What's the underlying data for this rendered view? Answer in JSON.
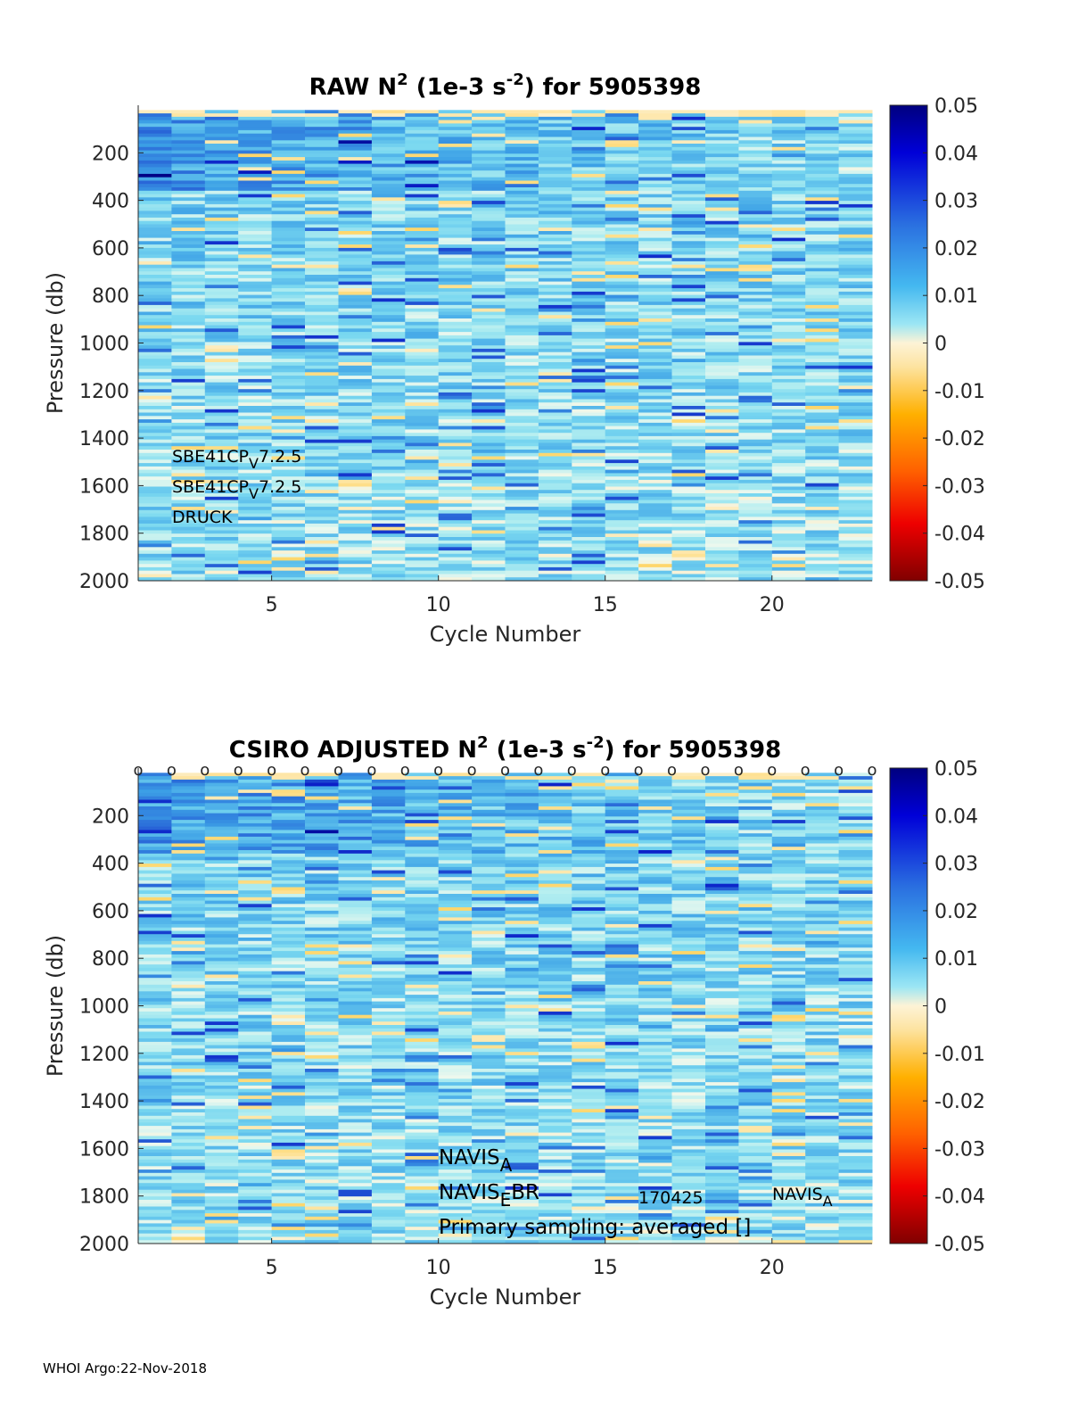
{
  "footer": "WHOI Argo:22-Nov-2018",
  "colorbar": {
    "ticks": [
      "0.05",
      "0.04",
      "0.03",
      "0.02",
      "0.01",
      "0",
      "-0.01",
      "-0.02",
      "-0.03",
      "-0.04",
      "-0.05"
    ],
    "range": [
      -0.05,
      0.05
    ]
  },
  "chart_data": [
    {
      "type": "heatmap",
      "title_main": "RAW N",
      "title_sup": "2",
      "title_mid": " (1e-3 s",
      "title_sup2": "-2",
      "title_end": ") for 5905398",
      "xlabel": "Cycle Number",
      "ylabel": "Pressure (db)",
      "xlim": [
        1,
        23
      ],
      "ylim": [
        0,
        2000
      ],
      "xticks": [
        "5",
        "10",
        "15",
        "20"
      ],
      "xtick_values": [
        5,
        10,
        15,
        20
      ],
      "yticks": [
        "200",
        "400",
        "600",
        "800",
        "1000",
        "1200",
        "1400",
        "1600",
        "1800",
        "2000"
      ],
      "ytick_values": [
        200,
        400,
        600,
        800,
        1000,
        1200,
        1400,
        1600,
        1800,
        2000
      ],
      "cycles": [
        1,
        2,
        3,
        4,
        5,
        6,
        7,
        8,
        9,
        10,
        11,
        12,
        13,
        14,
        15,
        16,
        17,
        18,
        19,
        20,
        21,
        22
      ],
      "annotations": [
        {
          "base": "SBE41CP",
          "sub": "V",
          "rest": "7.2.5"
        },
        {
          "base": "SBE41CP",
          "sub": "V",
          "rest": "7.2.5"
        },
        {
          "base": "DRUCK",
          "sub": "",
          "rest": ""
        }
      ],
      "cycle_markers": false
    },
    {
      "type": "heatmap",
      "title_main": "CSIRO  ADJUSTED N",
      "title_sup": "2",
      "title_mid": " (1e-3 s",
      "title_sup2": "-2",
      "title_end": ") for 5905398",
      "xlabel": "Cycle Number",
      "ylabel": "Pressure (db)",
      "xlim": [
        1,
        23
      ],
      "ylim": [
        0,
        2000
      ],
      "xticks": [
        "5",
        "10",
        "15",
        "20"
      ],
      "xtick_values": [
        5,
        10,
        15,
        20
      ],
      "yticks": [
        "200",
        "400",
        "600",
        "800",
        "1000",
        "1200",
        "1400",
        "1600",
        "1800",
        "2000"
      ],
      "ytick_values": [
        200,
        400,
        600,
        800,
        1000,
        1200,
        1400,
        1600,
        1800,
        2000
      ],
      "cycles": [
        1,
        2,
        3,
        4,
        5,
        6,
        7,
        8,
        9,
        10,
        11,
        12,
        13,
        14,
        15,
        16,
        17,
        18,
        19,
        20,
        21,
        22
      ],
      "marker_label": "o",
      "annotations": [
        {
          "base": "NAVIS",
          "sub": "A",
          "rest": ""
        },
        {
          "base": "NAVIS",
          "sub": "E",
          "rest": "BR"
        },
        {
          "base": "Primary sampling: averaged []",
          "sub": "",
          "rest": ""
        }
      ],
      "extra_labels": [
        {
          "base": "170425",
          "sub": "",
          "rest": ""
        },
        {
          "base": "NAVIS",
          "sub": "A",
          "rest": ""
        }
      ],
      "cycle_markers": true
    }
  ]
}
